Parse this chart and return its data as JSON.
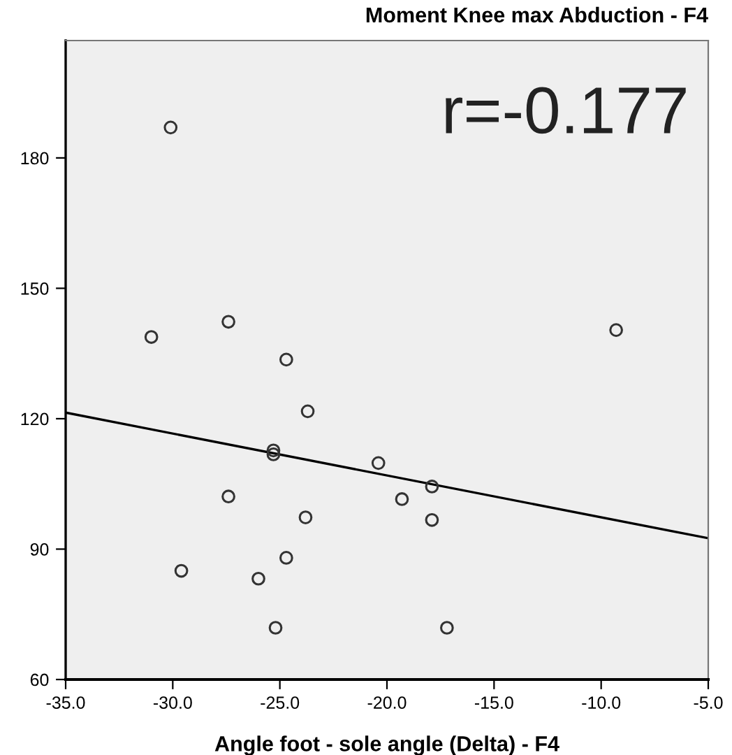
{
  "chart_data": {
    "type": "scatter",
    "title": "Moment Knee max Abduction - F4",
    "xlabel": "Angle foot - sole angle (Delta) - F4",
    "annotations": [
      "r=-0.177"
    ],
    "xlim": [
      -35,
      -5
    ],
    "ylim": [
      60,
      207
    ],
    "xticks": [
      {
        "value": -35,
        "label": "-35.0"
      },
      {
        "value": -30,
        "label": "-30.0"
      },
      {
        "value": -25,
        "label": "-25.0"
      },
      {
        "value": -20,
        "label": "-20.0"
      },
      {
        "value": -15,
        "label": "-15.0"
      },
      {
        "value": -10,
        "label": "-10.0"
      },
      {
        "value": -5,
        "label": "-5.0"
      }
    ],
    "yticks": [
      60,
      90,
      120,
      150,
      180
    ],
    "grid": false,
    "legend": false,
    "series": [
      {
        "marker": "circle",
        "color": "#333333",
        "x": [
          -30.1,
          -31.0,
          -27.4,
          -24.7,
          -9.3,
          -23.7,
          -25.3,
          -25.3,
          -20.4,
          -27.4,
          -19.3,
          -17.9,
          -23.8,
          -17.9,
          -24.7,
          -29.6,
          -26.0,
          -25.2,
          -17.2
        ],
        "values": [
          187,
          138.8,
          142.3,
          133.6,
          140.4,
          121.7,
          112.7,
          111.8,
          109.8,
          102.1,
          101.5,
          104.4,
          97.3,
          96.7,
          88,
          85,
          83.2,
          71.9,
          71.9
        ]
      },
      {
        "type": "line",
        "color": "#000000",
        "x": [
          -35,
          -5
        ],
        "values": [
          121.4,
          92.5
        ]
      }
    ]
  }
}
